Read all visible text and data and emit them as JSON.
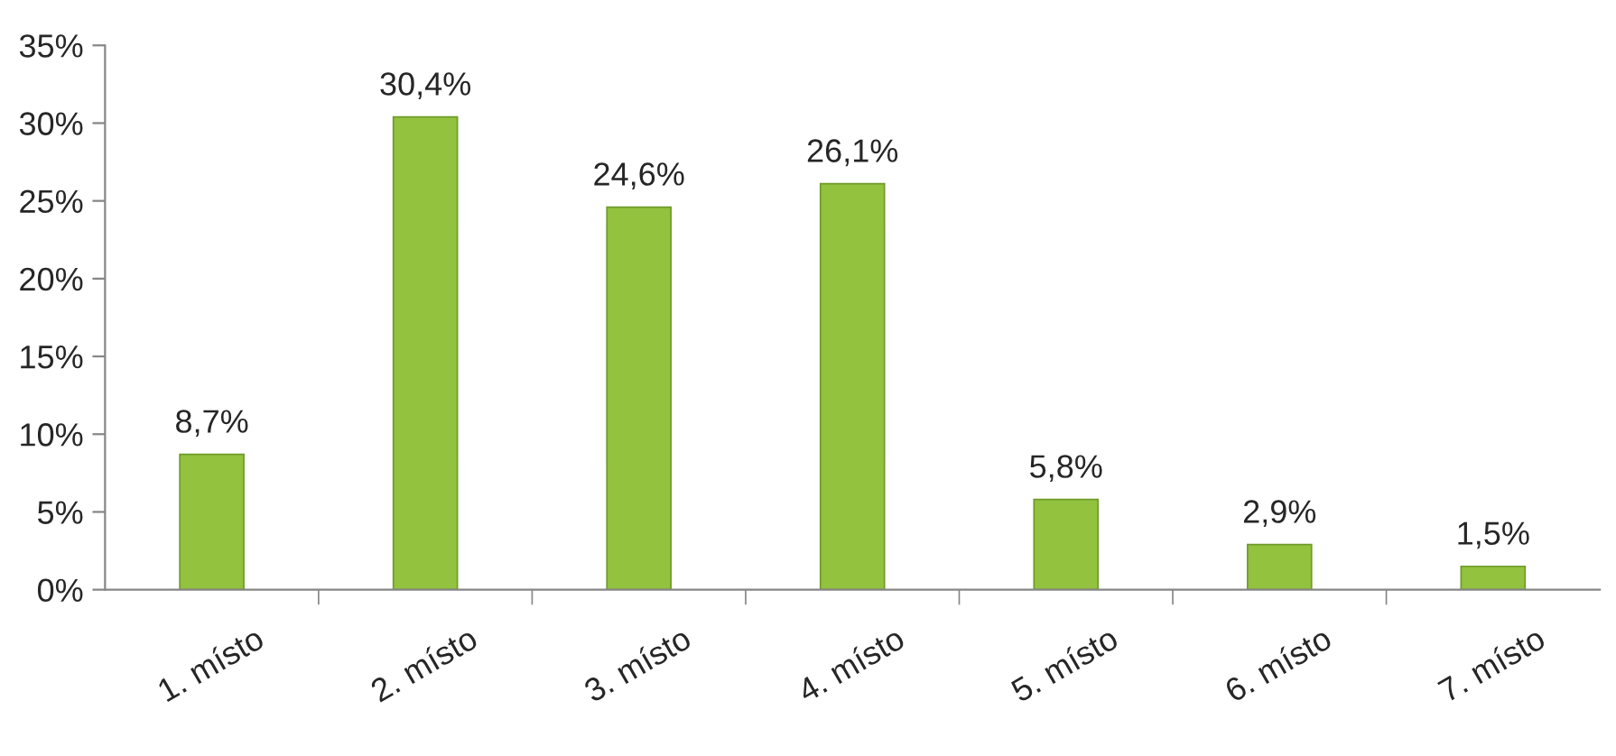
{
  "chart_data": {
    "type": "bar",
    "categories": [
      "1. místo",
      "2. místo",
      "3. místo",
      "4. místo",
      "5. místo",
      "6. místo",
      "7. místo"
    ],
    "values": [
      8.7,
      30.4,
      24.6,
      26.1,
      5.8,
      2.9,
      1.5
    ],
    "value_labels": [
      "8,7%",
      "30,4%",
      "24,6%",
      "26,1%",
      "5,8%",
      "2,9%",
      "1,5%"
    ],
    "color": "#92c23e",
    "ylim": [
      0,
      35
    ],
    "yticks": [
      {
        "value": 0,
        "label": "0%"
      },
      {
        "value": 5,
        "label": "5%"
      },
      {
        "value": 10,
        "label": "10%"
      },
      {
        "value": 15,
        "label": "15%"
      },
      {
        "value": 20,
        "label": "20%"
      },
      {
        "value": 25,
        "label": "25%"
      },
      {
        "value": 30,
        "label": "30%"
      },
      {
        "value": 35,
        "label": "35%"
      }
    ],
    "grid": false
  }
}
